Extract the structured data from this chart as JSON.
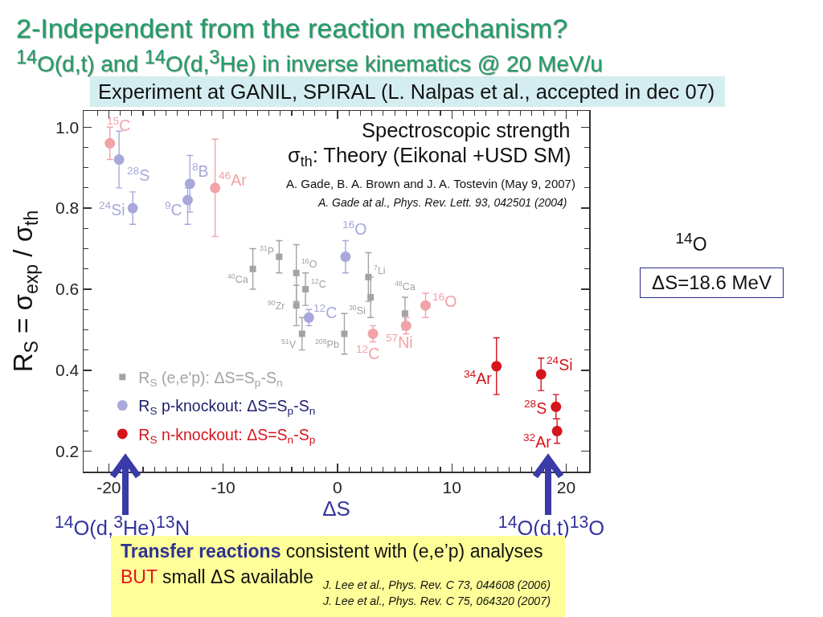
{
  "chart_data": {
    "type": "scatter",
    "title": "2-Independent from the reaction mechanism?",
    "subtitle": "$^{14}$O(d,t) and $^{14}$O(d,$^{3}$He) in inverse kinematics @ 20 MeV/u",
    "xlabel": "ΔS",
    "ylabel": "R$_{S}$ = σ$_{exp}$ / σ$_{th}$",
    "xlim": [
      -22.2,
      22
    ],
    "ylim": [
      0.15,
      1.04
    ],
    "xticks": [
      {
        "value": -21,
        "label": null
      },
      -20,
      {
        "value": -19,
        "label": null
      },
      {
        "value": -18,
        "label": null
      },
      {
        "value": -17,
        "label": null
      },
      {
        "value": -16,
        "label": null
      },
      {
        "value": -15,
        "label": null
      },
      {
        "value": -14,
        "label": null
      },
      {
        "value": -13,
        "label": null
      },
      {
        "value": -12,
        "label": null
      },
      {
        "value": -11,
        "label": null
      },
      -10,
      {
        "value": -9,
        "label": null
      },
      {
        "value": -8,
        "label": null
      },
      {
        "value": -7,
        "label": null
      },
      {
        "value": -6,
        "label": null
      },
      {
        "value": -5,
        "label": null
      },
      {
        "value": -4,
        "label": null
      },
      {
        "value": -3,
        "label": null
      },
      {
        "value": -2,
        "label": null
      },
      {
        "value": -1,
        "label": null
      },
      0,
      {
        "value": 1,
        "label": null
      },
      {
        "value": 2,
        "label": null
      },
      {
        "value": 3,
        "label": null
      },
      {
        "value": 4,
        "label": null
      },
      {
        "value": 5,
        "label": null
      },
      {
        "value": 6,
        "label": null
      },
      {
        "value": 7,
        "label": null
      },
      {
        "value": 8,
        "label": null
      },
      {
        "value": 9,
        "label": null
      },
      10,
      {
        "value": 11,
        "label": null
      },
      {
        "value": 12,
        "label": null
      },
      {
        "value": 13,
        "label": null
      },
      {
        "value": 14,
        "label": null
      },
      {
        "value": 15,
        "label": null
      },
      {
        "value": 16,
        "label": null
      },
      {
        "value": 17,
        "label": null
      },
      {
        "value": 18,
        "label": null
      },
      {
        "value": 19,
        "label": null
      },
      20,
      {
        "value": 21,
        "label": null
      }
    ],
    "yticks": [
      0.2,
      {
        "value": 0.25,
        "label": null
      },
      {
        "value": 0.3,
        "label": null
      },
      {
        "value": 0.35,
        "label": null
      },
      0.4,
      {
        "value": 0.45,
        "label": null
      },
      {
        "value": 0.5,
        "label": null
      },
      {
        "value": 0.55,
        "label": null
      },
      0.6,
      {
        "value": 0.65,
        "label": null
      },
      {
        "value": 0.7,
        "label": null
      },
      {
        "value": 0.75,
        "label": null
      },
      0.8,
      {
        "value": 0.85,
        "label": null
      },
      {
        "value": 0.9,
        "label": null
      },
      {
        "value": 0.95,
        "label": null
      },
      {
        "value": 1,
        "label": "1.0"
      }
    ],
    "legend": "bottom left",
    "series": [
      {
        "name": "R$_{S}$ (e,e'p): ΔS=S$_{p}$-S$_{n}$",
        "marker": "square",
        "color": "#a3a3a3",
        "x": [
          -7.4,
          -5.1,
          -3.6,
          -3.6,
          -2.8,
          -3.1,
          0.6,
          2.7,
          2.9,
          5.9
        ],
        "values": [
          0.65,
          0.68,
          0.64,
          0.56,
          0.6,
          0.49,
          0.49,
          0.63,
          0.58,
          0.54
        ],
        "errors": [
          [
            0.6,
            0.7
          ],
          [
            0.64,
            0.72
          ],
          [
            0.57,
            0.71
          ],
          [
            0.51,
            0.61
          ],
          [
            0.56,
            0.64
          ],
          [
            0.45,
            0.53
          ],
          [
            0.44,
            0.54
          ],
          [
            0.57,
            0.69
          ],
          [
            0.53,
            0.63
          ],
          [
            0.5,
            0.58
          ]
        ]
      },
      {
        "name": "R$_{S}$ p-knockout: ΔS=S$_{p}$-S$_{n}$",
        "marker": "circle",
        "color": "#1c1c6e",
        "colors": [
          "#a8a8da",
          "#a8a8da",
          "#a8a8da",
          "#a8a8da",
          "#a8a8da",
          "#a8a8da"
        ],
        "x": [
          -19.1,
          -17.9,
          -12.9,
          -13.1,
          -2.5,
          0.7
        ],
        "values": [
          0.92,
          0.8,
          0.86,
          0.82,
          0.53,
          0.68
        ],
        "errors": [
          [
            0.85,
            0.99
          ],
          [
            0.76,
            0.84
          ],
          [
            0.79,
            0.93
          ],
          [
            0.76,
            0.85
          ],
          [
            0.51,
            0.55
          ],
          [
            0.64,
            0.72
          ]
        ]
      },
      {
        "name": "R$_{S}$ n-knockout: ΔS=S$_{n}$-S$_{p}$",
        "marker": "circle",
        "color": "#d6141c",
        "colors": [
          "#d6141c",
          "#d6141c",
          "#d6141c",
          "#d6141c",
          "#f0a3a8",
          "#f0a3a8",
          "#f0a3a8",
          "#f0a3a8",
          "#f0a3a8"
        ],
        "x": [
          13.9,
          17.8,
          19.1,
          19.2,
          -19.9,
          -10.7,
          3.1,
          6.0,
          7.7
        ],
        "values": [
          0.41,
          0.39,
          0.31,
          0.25,
          0.96,
          0.85,
          0.49,
          0.51,
          0.56
        ],
        "errors": [
          [
            0.34,
            0.48
          ],
          [
            0.35,
            0.43
          ],
          [
            0.28,
            0.34
          ],
          [
            0.22,
            0.28
          ],
          [
            0.92,
            1.0
          ],
          [
            0.73,
            0.97
          ],
          [
            0.47,
            0.51
          ],
          [
            0.49,
            0.53
          ],
          [
            0.53,
            0.59
          ]
        ]
      }
    ],
    "annotations": [
      "Experiment at GANIL, SPIRAL (L. Nalpas et al., accepted in dec 07)",
      "Spectroscopic strength",
      "σ$_{th}$: Theory (Eikonal +USD SM)",
      "A. Gade, B. A. Brown and J. A. Tostevin (May 9, 2007)",
      "A. Gade at al., Phys. Rev. Lett. 93, 042501 (2004)",
      "$^{14}$O",
      "ΔS=18.6 MeV",
      "$^{14}$O(d,$^{3}$He)$^{13}$N",
      "$^{14}$O(d,t)$^{13}$O",
      "Transfer reactions",
      "consistent with (e,e’p) analyses",
      "BUT",
      "small ΔS available",
      "J. Lee et al., Phys. Rev. C 73, 044608 (2006)",
      "J. Lee et al., Phys. Rev. C 75, 064320 (2007)",
      {
        "text": "$^{15}$C",
        "x": -19.9,
        "y": 0.96
      },
      {
        "text": "$^{28}$S",
        "x": -19.1,
        "y": 0.92
      },
      {
        "text": "$^{24}$Si",
        "x": -17.9,
        "y": 0.8
      },
      {
        "text": "$^{8}$B",
        "x": -12.9,
        "y": 0.86
      },
      {
        "text": "$^{9}$C",
        "x": -13.1,
        "y": 0.82
      },
      {
        "text": "$^{46}$Ar",
        "x": -10.7,
        "y": 0.85
      },
      {
        "text": "$^{40}$Ca",
        "x": -7.4,
        "y": 0.65
      },
      {
        "text": "$^{31}$P",
        "x": -5.1,
        "y": 0.68
      },
      {
        "text": "$^{16}$O",
        "x": -3.6,
        "y": 0.64
      },
      {
        "text": "$^{12}$C",
        "x": -2.8,
        "y": 0.6
      },
      {
        "text": "$^{90}$Zr",
        "x": -3.6,
        "y": 0.56
      },
      {
        "text": "$^{12}$C",
        "x": -2.5,
        "y": 0.53
      },
      {
        "text": "$^{51}$V",
        "x": -3.1,
        "y": 0.49
      },
      {
        "text": "$^{208}$Pb",
        "x": 0.6,
        "y": 0.49
      },
      {
        "text": "$^{16}$O",
        "x": 0.7,
        "y": 0.68
      },
      {
        "text": "$^{7}$Li",
        "x": 2.7,
        "y": 0.63
      },
      {
        "text": "$^{48}$Ca",
        "x": 5.9,
        "y": 0.54
      },
      {
        "text": "$^{30}$Si",
        "x": 2.9,
        "y": 0.58
      },
      {
        "text": "$^{16}$O",
        "x": 7.7,
        "y": 0.56
      },
      {
        "text": "$^{12}$C",
        "x": 3.1,
        "y": 0.49
      },
      {
        "text": "$^{57}$Ni",
        "x": 6.0,
        "y": 0.51
      },
      {
        "text": "$^{34}$Ar",
        "x": 13.9,
        "y": 0.41
      },
      {
        "text": "$^{24}$Si",
        "x": 17.8,
        "y": 0.39
      },
      {
        "text": "$^{28}$S",
        "x": 19.1,
        "y": 0.31
      },
      {
        "text": "$^{32}$Ar",
        "x": 19.2,
        "y": 0.25
      }
    ]
  }
}
